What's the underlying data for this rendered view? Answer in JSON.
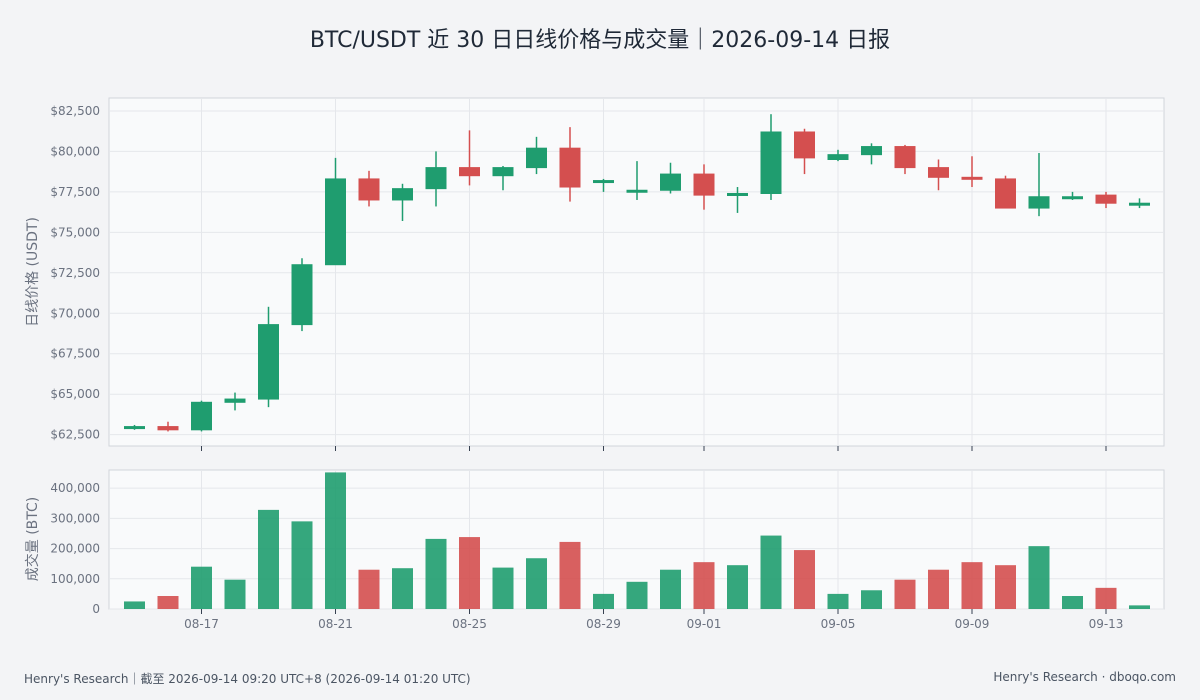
{
  "title": "BTC/USDT 近 30 日日线价格与成交量｜2026-09-14 日报",
  "footer": {
    "left": "Henry's Research｜截至 2026-09-14 09:20 UTC+8 (2026-09-14 01:20 UTC)",
    "right": "Henry's Research · dboqo.com"
  },
  "colors": {
    "up": "#1f9d6f",
    "down": "#d44f4f",
    "grid": "#e5e7eb",
    "panel": "#f9fafb",
    "border": "#d1d5db"
  },
  "chart_data": [
    {
      "type": "candlestick",
      "ylabel": "日线价格 (USDT)",
      "ylim": [
        61800,
        83300
      ],
      "yticks": [
        62500,
        65000,
        67500,
        70000,
        72500,
        75000,
        77500,
        80000,
        82500
      ],
      "ytick_labels": [
        "$62,500",
        "$65,000",
        "$67,500",
        "$70,000",
        "$72,500",
        "$75,000",
        "$77,500",
        "$80,000",
        "$82,500"
      ],
      "grid": true,
      "dates": [
        "08-15",
        "08-16",
        "08-17",
        "08-18",
        "08-19",
        "08-20",
        "08-21",
        "08-22",
        "08-23",
        "08-24",
        "08-25",
        "08-26",
        "08-27",
        "08-28",
        "08-29",
        "08-30",
        "08-31",
        "09-01",
        "09-02",
        "09-03",
        "09-04",
        "09-05",
        "09-06",
        "09-07",
        "09-08",
        "09-09",
        "09-10",
        "09-11",
        "09-12",
        "09-13",
        "09-14"
      ],
      "open": [
        62900,
        63000,
        62800,
        64500,
        64700,
        69300,
        73000,
        78300,
        77000,
        77700,
        79000,
        78500,
        79000,
        80200,
        78200,
        77600,
        77600,
        78600,
        77300,
        77400,
        81200,
        79500,
        79800,
        80300,
        79000,
        78400,
        78300,
        76500,
        77200,
        77300,
        76800
      ],
      "high": [
        63100,
        63300,
        64600,
        65100,
        70400,
        73400,
        79600,
        78800,
        78000,
        80000,
        81300,
        79100,
        80900,
        81500,
        78300,
        79400,
        79300,
        79200,
        77800,
        82300,
        81400,
        80100,
        80500,
        80400,
        79500,
        79700,
        78500,
        79900,
        77500,
        77500,
        77100
      ],
      "low": [
        62800,
        62700,
        62700,
        64000,
        64200,
        68900,
        73000,
        76600,
        75700,
        76600,
        77900,
        77600,
        78600,
        76900,
        77500,
        77000,
        77400,
        76400,
        76200,
        77000,
        78600,
        79400,
        79200,
        78600,
        77600,
        77800,
        76500,
        76000,
        77000,
        76500,
        76500
      ],
      "close": [
        63000,
        62800,
        64500,
        64700,
        69300,
        73000,
        78300,
        77000,
        77700,
        79000,
        78500,
        79000,
        80200,
        77800,
        78200,
        77600,
        78600,
        77300,
        77400,
        81200,
        79600,
        79800,
        80300,
        79000,
        78400,
        78300,
        76500,
        77200,
        77200,
        76800,
        76800
      ]
    },
    {
      "type": "bar",
      "ylabel": "成交量 (BTC)",
      "ylim": [
        0,
        460000
      ],
      "yticks": [
        0,
        100000,
        200000,
        300000,
        400000
      ],
      "ytick_labels": [
        "0",
        "100,000",
        "200,000",
        "300,000",
        "400,000"
      ],
      "categories": [
        "08-15",
        "08-16",
        "08-17",
        "08-18",
        "08-19",
        "08-20",
        "08-21",
        "08-22",
        "08-23",
        "08-24",
        "08-25",
        "08-26",
        "08-27",
        "08-28",
        "08-29",
        "08-30",
        "08-31",
        "09-01",
        "09-02",
        "09-03",
        "09-04",
        "09-05",
        "09-06",
        "09-07",
        "09-08",
        "09-09",
        "09-10",
        "09-11",
        "09-12",
        "09-13",
        "09-14"
      ],
      "values": [
        25000,
        43000,
        140000,
        97000,
        328000,
        290000,
        452000,
        130000,
        135000,
        232000,
        238000,
        137000,
        168000,
        222000,
        50000,
        90000,
        130000,
        155000,
        145000,
        243000,
        195000,
        50000,
        62000,
        97000,
        130000,
        155000,
        145000,
        208000,
        43000,
        70000,
        12000
      ],
      "xtick_labels": [
        "08-17",
        "08-21",
        "08-25",
        "08-29",
        "09-01",
        "09-05",
        "09-09",
        "09-13"
      ],
      "xtick_dates": [
        "08-17",
        "08-21",
        "08-25",
        "08-29",
        "09-01",
        "09-05",
        "09-09",
        "09-13"
      ],
      "grid": true
    }
  ]
}
